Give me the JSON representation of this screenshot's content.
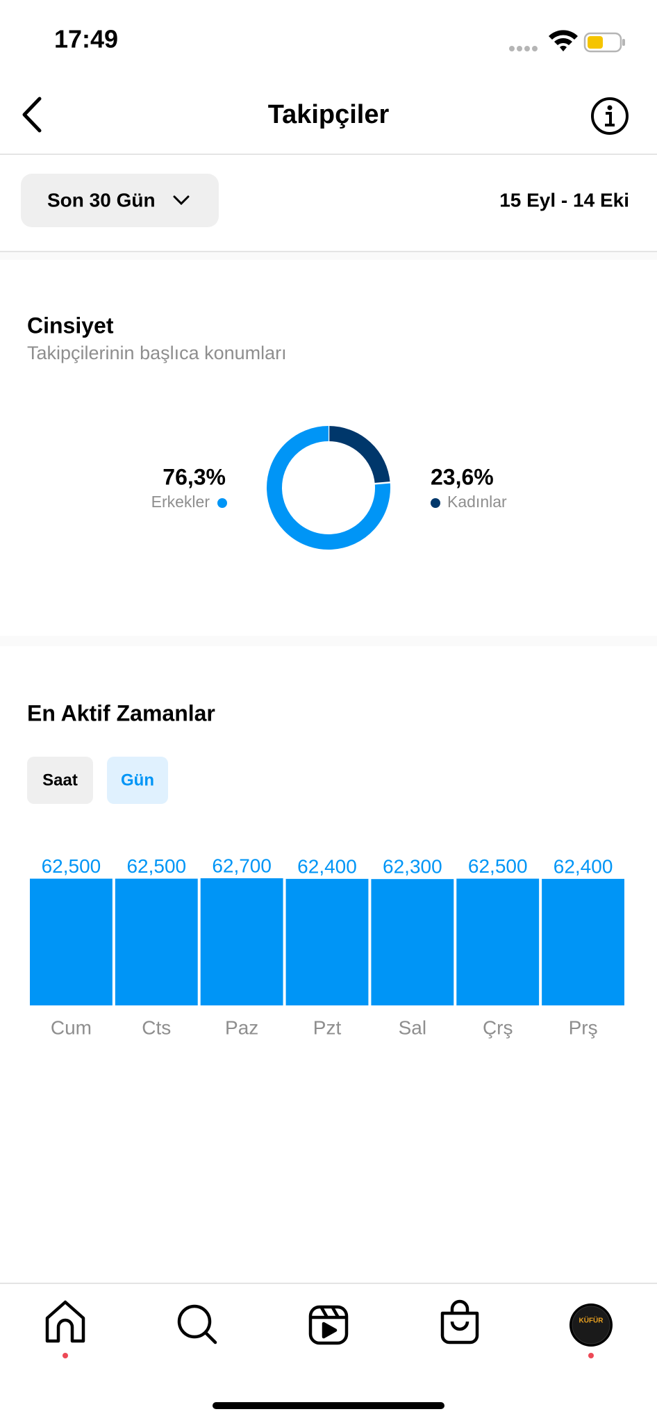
{
  "status": {
    "time": "17:49"
  },
  "header": {
    "title": "Takipçiler"
  },
  "filter": {
    "label": "Son 30 Gün",
    "date_range": "15 Eyl - 14 Eki"
  },
  "gender": {
    "type": "donut",
    "title": "Cinsiyet",
    "subtitle": "Takipçilerinin başlıca konumları",
    "series": [
      {
        "name": "Erkekler",
        "value": 76.3,
        "value_label": "76,3%",
        "color": "#0095f6"
      },
      {
        "name": "Kadınlar",
        "value": 23.6,
        "value_label": "23,6%",
        "color": "#00376b"
      }
    ]
  },
  "active": {
    "type": "bar",
    "title": "En Aktif Zamanlar",
    "tabs": [
      "Saat",
      "Gün"
    ],
    "categories": [
      "Cum",
      "Cts",
      "Paz",
      "Pzt",
      "Sal",
      "Çrş",
      "Prş"
    ],
    "values": [
      62500,
      62500,
      62700,
      62400,
      62300,
      62500,
      62400
    ],
    "value_labels": [
      "62,500",
      "62,500",
      "62,700",
      "62,400",
      "62,300",
      "62,500",
      "62,400"
    ],
    "ylim": [
      0,
      62700
    ],
    "color": "#0095f6"
  },
  "nav": {
    "avatar_text": "KÜFÜR"
  }
}
